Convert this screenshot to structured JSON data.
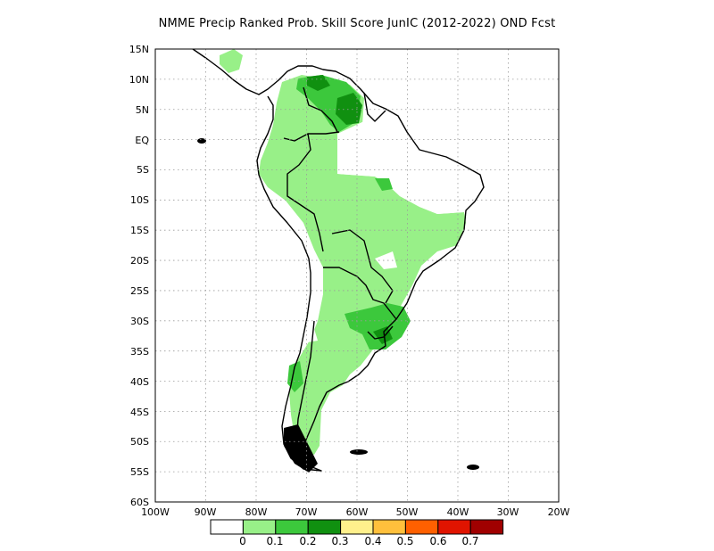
{
  "title": "NMME Precip Ranked Prob. Skill Score JunIC (2012-2022) OND Fcst",
  "map": {
    "lat_labels": [
      "15N",
      "10N",
      "5N",
      "EQ",
      "5S",
      "10S",
      "15S",
      "20S",
      "25S",
      "30S",
      "35S",
      "40S",
      "45S",
      "50S",
      "55S",
      "60S"
    ],
    "lon_labels": [
      "100W",
      "90W",
      "80W",
      "70W",
      "60W",
      "50W",
      "40W",
      "30W",
      "20W"
    ],
    "grid": "dotted"
  },
  "colorbar": {
    "colors": [
      "#ffffff",
      "#98f088",
      "#3cc83c",
      "#109010",
      "#fff08c",
      "#ffc03c",
      "#ff6000",
      "#e01400",
      "#a00000"
    ],
    "labels": [
      "0",
      "0.1",
      "0.2",
      "0.3",
      "0.4",
      "0.5",
      "0.6",
      "0.7"
    ]
  }
}
